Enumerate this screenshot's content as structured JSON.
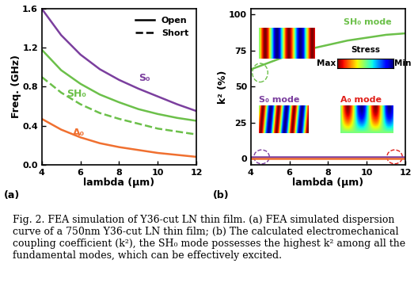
{
  "chart_data": [
    {
      "type": "line",
      "panel": "(a)",
      "x_label": "lambda (μm)",
      "y_label": "Freq. (GHz)",
      "x": [
        4,
        5,
        6,
        7,
        8,
        9,
        10,
        11,
        12
      ],
      "series": [
        {
          "name": "S₀",
          "color": "#7b3f9e",
          "line_style": "solid",
          "values": [
            1.6,
            1.33,
            1.13,
            0.98,
            0.87,
            0.78,
            0.7,
            0.62,
            0.55
          ]
        },
        {
          "name": "SH₀",
          "color": "#6cc04a",
          "line_style": "solid",
          "values": [
            1.18,
            0.97,
            0.83,
            0.72,
            0.64,
            0.57,
            0.52,
            0.48,
            0.45
          ]
        },
        {
          "name": "SH₀",
          "color": "#6cc04a",
          "line_style": "dashed",
          "values": [
            0.9,
            0.74,
            0.62,
            0.53,
            0.47,
            0.42,
            0.37,
            0.34,
            0.31
          ]
        },
        {
          "name": "A₀",
          "color": "#f07030",
          "line_style": "solid",
          "values": [
            0.47,
            0.36,
            0.28,
            0.22,
            0.18,
            0.15,
            0.12,
            0.1,
            0.08
          ]
        }
      ],
      "styles": [
        {
          "name": "Open",
          "line_style": "solid",
          "color": "#000000"
        },
        {
          "name": "Short",
          "line_style": "dashed",
          "color": "#000000"
        }
      ],
      "legend": "upper right",
      "xlim": [
        4,
        12
      ],
      "xticks": [
        4,
        6,
        8,
        10,
        12
      ],
      "ylim": [
        0.0,
        1.6
      ],
      "yticks": [
        0.0,
        0.4,
        0.8,
        1.2,
        1.6
      ]
    },
    {
      "type": "line",
      "panel": "(b)",
      "x_label": "lambda (μm)",
      "y_label": "k² (%)",
      "x": [
        4,
        5,
        6,
        7,
        8,
        9,
        10,
        11,
        12
      ],
      "series": [
        {
          "name": "SH₀",
          "color": "#6cc04a",
          "line_style": "solid",
          "values": [
            62,
            67,
            72,
            76,
            79,
            82,
            84,
            86,
            87
          ]
        },
        {
          "name": "S₀",
          "color": "#7b3f9e",
          "line_style": "solid",
          "values": [
            1.5,
            1.5,
            1.5,
            1.5,
            1.5,
            1.5,
            1.5,
            1.5,
            1.5
          ]
        },
        {
          "name": "A₀",
          "color": "#f07030",
          "line_style": "solid",
          "values": [
            0.5,
            0.5,
            0.5,
            0.5,
            0.5,
            0.5,
            0.5,
            0.5,
            0.5
          ]
        }
      ],
      "annotations": [
        {
          "text": "SH₀ mode",
          "color": "#6cc04a"
        },
        {
          "text": "S₀ mode",
          "color": "#7b3f9e"
        },
        {
          "text": "A₀ mode",
          "color": "#e0201a"
        }
      ],
      "colorbar": {
        "title": "Stress",
        "max_label": "Max",
        "min_label": "Min"
      },
      "xlim": [
        4,
        12
      ],
      "xticks": [
        4,
        6,
        8,
        10,
        12
      ],
      "ylim": [
        -4,
        104
      ],
      "yticks": [
        0,
        25,
        50,
        75,
        100
      ]
    }
  ],
  "caption": "Fig. 2. FEA simulation of Y36-cut LN thin film. (a) FEA simulated dispersion curve of a 750nm Y36-cut LN thin film; (b) The calculated electromechanical coupling coefficient (k²), the SH₀ mode possesses the highest k² among all the fundamental modes, which can be effectively excited."
}
